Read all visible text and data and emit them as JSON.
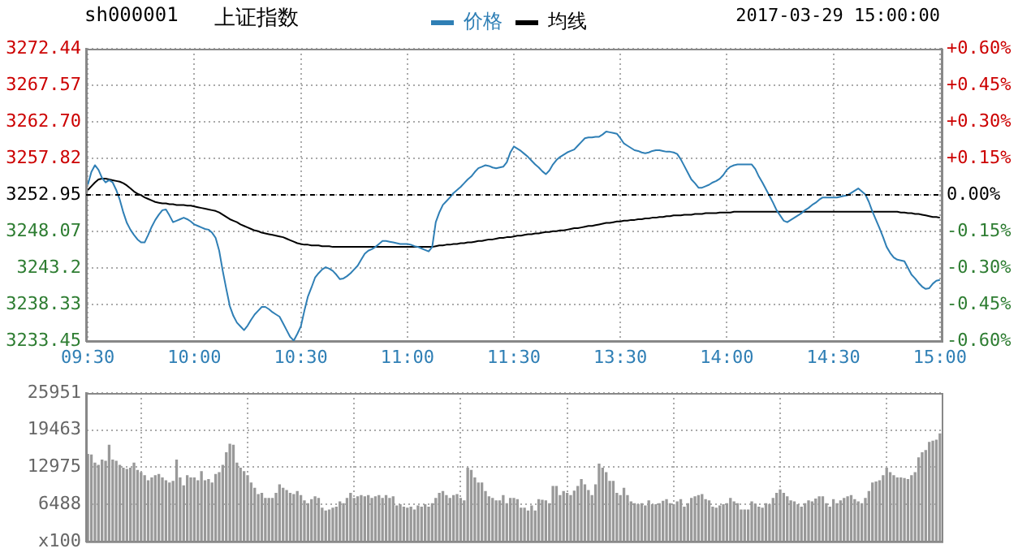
{
  "chart_data": [
    {
      "type": "line",
      "title": "上证指数",
      "subtitle": "sh000001",
      "annotations": [
        "2017-03-29 15:00:00"
      ],
      "legend": "top",
      "grid": true,
      "categories": [
        "09:30",
        null,
        null,
        null,
        null,
        null,
        null,
        null,
        null,
        null,
        null,
        null,
        null,
        null,
        null,
        null,
        null,
        null,
        null,
        null,
        null,
        null,
        null,
        null,
        null,
        null,
        null,
        null,
        null,
        null,
        "10:00",
        null,
        null,
        null,
        null,
        null,
        null,
        null,
        null,
        null,
        null,
        null,
        null,
        null,
        null,
        null,
        null,
        null,
        null,
        null,
        null,
        null,
        null,
        null,
        null,
        null,
        null,
        null,
        null,
        null,
        "10:30",
        null,
        null,
        null,
        null,
        null,
        null,
        null,
        null,
        null,
        null,
        null,
        null,
        null,
        null,
        null,
        null,
        null,
        null,
        null,
        null,
        null,
        null,
        null,
        null,
        null,
        null,
        null,
        null,
        null,
        "11:00",
        null,
        null,
        null,
        null,
        null,
        null,
        null,
        null,
        null,
        null,
        null,
        null,
        null,
        null,
        null,
        null,
        null,
        null,
        null,
        null,
        null,
        null,
        null,
        null,
        null,
        null,
        null,
        null,
        null,
        "11:30",
        null,
        null,
        null,
        null,
        null,
        null,
        null,
        null,
        null,
        null,
        null,
        null,
        null,
        null,
        null,
        null,
        null,
        null,
        null,
        null,
        null,
        null,
        null,
        null,
        null,
        null,
        null,
        null,
        null,
        "13:30",
        null,
        null,
        null,
        null,
        null,
        null,
        null,
        null,
        null,
        null,
        null,
        null,
        null,
        null,
        null,
        null,
        null,
        null,
        null,
        null,
        null,
        null,
        null,
        null,
        null,
        null,
        null,
        null,
        null,
        "14:00",
        null,
        null,
        null,
        null,
        null,
        null,
        null,
        null,
        null,
        null,
        null,
        null,
        null,
        null,
        null,
        null,
        null,
        null,
        null,
        null,
        null,
        null,
        null,
        null,
        null,
        null,
        null,
        null,
        null,
        "14:30",
        null,
        null,
        null,
        null,
        null,
        null,
        null,
        null,
        null,
        null,
        null,
        null,
        null,
        null,
        null,
        null,
        null,
        null,
        null,
        null,
        null,
        null,
        null,
        null,
        null,
        null,
        null,
        null,
        null,
        "15:00"
      ],
      "ylim": [
        3233.45,
        3272.44
      ],
      "yticks": [
        3233.45,
        3238.33,
        3243.2,
        3248.07,
        3252.95,
        3257.82,
        {
          "value": 3262.7,
          "label": "3262.70"
        },
        3267.57,
        3272.44
      ],
      "y2lim": [
        -0.6,
        0.6
      ],
      "y2ticks": [
        {
          "value": -0.6,
          "label": "-0.60%"
        },
        {
          "value": -0.45,
          "label": "-0.45%"
        },
        {
          "value": -0.3,
          "label": "-0.30%"
        },
        {
          "value": -0.15,
          "label": "-0.15%"
        },
        {
          "value": 0,
          "label": "0.00%"
        },
        {
          "value": 0.15,
          "label": "+0.15%"
        },
        {
          "value": 0.3,
          "label": "+0.30%"
        },
        {
          "value": 0.45,
          "label": "+0.45%"
        },
        {
          "value": 0.6,
          "label": "+0.60%"
        }
      ],
      "ref_lines": [
        {
          "axis": "y",
          "value": 3252.95,
          "color": "#000000",
          "line_style": "dashed"
        }
      ],
      "series": [
        {
          "name": "价格",
          "color": "#2f7fb5",
          "values": [
            3254.3,
            3256.0,
            3256.9,
            3256.3,
            3255.2,
            3254.6,
            3254.9,
            3254.6,
            3253.6,
            3252.3,
            3250.6,
            3249.2,
            3248.3,
            3247.6,
            3247.0,
            3246.6,
            3246.6,
            3247.6,
            3248.7,
            3249.6,
            3250.3,
            3250.9,
            3251.0,
            3250.2,
            3249.3,
            3249.5,
            3249.7,
            3249.9,
            3249.7,
            3249.4,
            3249.0,
            3248.8,
            3248.6,
            3248.4,
            3248.3,
            3247.9,
            3247.2,
            3245.5,
            3242.8,
            3240.4,
            3238.1,
            3236.8,
            3235.9,
            3235.4,
            3234.9,
            3235.5,
            3236.3,
            3237.0,
            3237.5,
            3238.0,
            3238.0,
            3237.7,
            3237.3,
            3237.0,
            3236.7,
            3235.8,
            3234.9,
            3234.0,
            3233.5,
            3234.4,
            3235.4,
            3237.5,
            3239.4,
            3240.6,
            3241.9,
            3242.5,
            3243.0,
            3243.3,
            3243.1,
            3242.8,
            3242.3,
            3241.7,
            3241.8,
            3242.1,
            3242.5,
            3243.0,
            3243.5,
            3244.3,
            3245.1,
            3245.5,
            3245.7,
            3246.0,
            3246.4,
            3246.8,
            3246.8,
            3246.7,
            3246.6,
            3246.5,
            3246.4,
            3246.4,
            3246.4,
            3246.3,
            3246.1,
            3246.0,
            3245.8,
            3245.6,
            3245.4,
            3246.0,
            3249.3,
            3250.6,
            3251.6,
            3252.1,
            3252.6,
            3253.2,
            3253.6,
            3254.0,
            3254.5,
            3255.0,
            3255.4,
            3256.0,
            3256.5,
            3256.7,
            3256.9,
            3256.8,
            3256.6,
            3256.5,
            3256.6,
            3256.7,
            3257.3,
            3258.6,
            3259.4,
            3259.1,
            3258.8,
            3258.4,
            3258.0,
            3257.5,
            3257.0,
            3256.6,
            3256.1,
            3255.7,
            3256.2,
            3257.0,
            3257.6,
            3258.0,
            3258.3,
            3258.6,
            3258.8,
            3259.0,
            3259.5,
            3260.0,
            3260.5,
            3260.6,
            3260.6,
            3260.7,
            3260.7,
            3261.0,
            3261.4,
            3261.3,
            3261.2,
            3261.1,
            3260.5,
            3259.8,
            3259.5,
            3259.2,
            3258.9,
            3258.8,
            3258.6,
            3258.5,
            3258.6,
            3258.8,
            3258.9,
            3258.9,
            3258.8,
            3258.7,
            3258.7,
            3258.6,
            3258.4,
            3257.7,
            3256.8,
            3255.9,
            3255.0,
            3254.5,
            3253.9,
            3253.9,
            3254.1,
            3254.3,
            3254.6,
            3254.8,
            3255.1,
            3255.6,
            3256.3,
            3256.7,
            3256.9,
            3257.0,
            3257.0,
            3257.0,
            3257.0,
            3257.0,
            3256.4,
            3255.4,
            3254.6,
            3253.7,
            3252.8,
            3251.9,
            3250.9,
            3250.2,
            3249.5,
            3249.3,
            3249.6,
            3249.9,
            3250.2,
            3250.5,
            3250.9,
            3251.2,
            3251.6,
            3251.9,
            3252.3,
            3252.6,
            3252.6,
            3252.6,
            3252.6,
            3252.6,
            3252.7,
            3252.8,
            3252.9,
            3253.2,
            3253.5,
            3253.8,
            3253.4,
            3253.0,
            3252.0,
            3250.7,
            3249.6,
            3248.5,
            3247.3,
            3246.0,
            3245.2,
            3244.6,
            3244.3,
            3244.2,
            3244.1,
            3243.2,
            3242.3,
            3241.8,
            3241.2,
            3240.7,
            3240.4,
            3240.5,
            3241.1,
            3241.5,
            3241.6
          ]
        },
        {
          "name": "均线",
          "color": "#000000",
          "values": [
            3253.6,
            3254.1,
            3254.6,
            3255.0,
            3255.1,
            3255.1,
            3255.0,
            3254.9,
            3254.8,
            3254.7,
            3254.5,
            3254.2,
            3253.8,
            3253.4,
            3253.1,
            3252.9,
            3252.6,
            3252.4,
            3252.2,
            3252.0,
            3251.9,
            3251.8,
            3251.8,
            3251.7,
            3251.7,
            3251.6,
            3251.6,
            3251.6,
            3251.5,
            3251.5,
            3251.4,
            3251.3,
            3251.2,
            3251.1,
            3251.0,
            3250.9,
            3250.8,
            3250.6,
            3250.3,
            3250.0,
            3249.7,
            3249.5,
            3249.3,
            3249.0,
            3248.8,
            3248.6,
            3248.4,
            3248.2,
            3248.1,
            3247.9,
            3247.8,
            3247.7,
            3247.6,
            3247.5,
            3247.4,
            3247.3,
            3247.1,
            3246.9,
            3246.7,
            3246.5,
            3246.4,
            3246.3,
            3246.3,
            3246.2,
            3246.2,
            3246.2,
            3246.1,
            3246.1,
            3246.1,
            3246.0,
            3246.0,
            3246.0,
            3246.0,
            3246.0,
            3246.0,
            3246.0,
            3246.0,
            3246.0,
            3246.0,
            3246.0,
            3246.0,
            3246.0,
            3246.0,
            3246.0,
            3246.0,
            3246.0,
            3246.0,
            3246.0,
            3246.0,
            3246.0,
            3246.0,
            3246.0,
            3246.0,
            3246.0,
            3246.0,
            3246.0,
            3246.0,
            3246.0,
            3246.1,
            3246.2,
            3246.2,
            3246.3,
            3246.3,
            3246.4,
            3246.4,
            3246.5,
            3246.5,
            3246.6,
            3246.6,
            3246.7,
            3246.8,
            3246.8,
            3246.9,
            3247.0,
            3247.0,
            3247.1,
            3247.2,
            3247.2,
            3247.3,
            3247.3,
            3247.4,
            3247.5,
            3247.5,
            3247.6,
            3247.7,
            3247.7,
            3247.8,
            3247.8,
            3247.9,
            3248.0,
            3248.0,
            3248.1,
            3248.1,
            3248.2,
            3248.2,
            3248.3,
            3248.4,
            3248.5,
            3248.5,
            3248.6,
            3248.7,
            3248.8,
            3248.8,
            3248.9,
            3249.0,
            3249.1,
            3249.2,
            3249.2,
            3249.3,
            3249.4,
            3249.4,
            3249.5,
            3249.5,
            3249.6,
            3249.6,
            3249.7,
            3249.7,
            3249.8,
            3249.8,
            3249.9,
            3249.9,
            3250.0,
            3250.0,
            3250.1,
            3250.1,
            3250.2,
            3250.2,
            3250.2,
            3250.3,
            3250.3,
            3250.3,
            3250.4,
            3250.4,
            3250.4,
            3250.5,
            3250.5,
            3250.5,
            3250.5,
            3250.6,
            3250.6,
            3250.6,
            3250.6,
            3250.7,
            3250.7,
            3250.7,
            3250.7,
            3250.7,
            3250.7,
            3250.7,
            3250.7,
            3250.7,
            3250.7,
            3250.7,
            3250.7,
            3250.7,
            3250.7,
            3250.7,
            3250.7,
            3250.7,
            3250.7,
            3250.7,
            3250.7,
            3250.7,
            3250.7,
            3250.7,
            3250.7,
            3250.7,
            3250.7,
            3250.7,
            3250.7,
            3250.7,
            3250.7,
            3250.7,
            3250.7,
            3250.7,
            3250.7,
            3250.7,
            3250.7,
            3250.7,
            3250.7,
            3250.7,
            3250.7,
            3250.7,
            3250.7,
            3250.7,
            3250.7,
            3250.7,
            3250.7,
            3250.7,
            3250.6,
            3250.6,
            3250.5,
            3250.5,
            3250.4,
            3250.4,
            3250.3,
            3250.2,
            3250.1,
            3250.0,
            3250.0,
            3249.9
          ]
        }
      ]
    },
    {
      "type": "bar",
      "grid": true,
      "tick_labels": "y",
      "categories": [
        null,
        null,
        null,
        null,
        null,
        null,
        null,
        null,
        null,
        null,
        null,
        null,
        null,
        null,
        null,
        null,
        null,
        null,
        null,
        null,
        null,
        null,
        null,
        null,
        null,
        null,
        null,
        null,
        null,
        null,
        null,
        null,
        null,
        null,
        null,
        null,
        null,
        null,
        null,
        null,
        null,
        null,
        null,
        null,
        null,
        null,
        null,
        null,
        null,
        null,
        null,
        null,
        null,
        null,
        null,
        null,
        null,
        null,
        null,
        null,
        null,
        null,
        null,
        null,
        null,
        null,
        null,
        null,
        null,
        null,
        null,
        null,
        null,
        null,
        null,
        null,
        null,
        null,
        null,
        null,
        null,
        null,
        null,
        null,
        null,
        null,
        null,
        null,
        null,
        null,
        null,
        null,
        null,
        null,
        null,
        null,
        null,
        null,
        null,
        null,
        null,
        null,
        null,
        null,
        null,
        null,
        null,
        null,
        null,
        null,
        null,
        null,
        null,
        null,
        null,
        null,
        null,
        null,
        null,
        null,
        null,
        null,
        null,
        null,
        null,
        null,
        null,
        null,
        null,
        null,
        null,
        null,
        null,
        null,
        null,
        null,
        null,
        null,
        null,
        null,
        null,
        null,
        null,
        null,
        null,
        null,
        null,
        null,
        null,
        null,
        null,
        null,
        null,
        null,
        null,
        null,
        null,
        null,
        null,
        null,
        null,
        null,
        null,
        null,
        null,
        null,
        null,
        null,
        null,
        null,
        null,
        null,
        null,
        null,
        null,
        null,
        null,
        null,
        null,
        null,
        null,
        null,
        null,
        null,
        null,
        null,
        null,
        null,
        null,
        null,
        null,
        null,
        null,
        null,
        null,
        null,
        null,
        null,
        null,
        null,
        null,
        null,
        null,
        null,
        null,
        null,
        null,
        null,
        null,
        null,
        null,
        null,
        null,
        null,
        null,
        null,
        null,
        null,
        null,
        null,
        null,
        null,
        null,
        null,
        null,
        null,
        null,
        null,
        null,
        null,
        null,
        null,
        null,
        null,
        null,
        null,
        null,
        null,
        null,
        null,
        null
      ],
      "ylim": [
        0,
        25951
      ],
      "yticks": [
        {
          "value": 0,
          "label": "x100"
        },
        6488,
        12975,
        19463,
        25951
      ],
      "series": [
        {
          "color": "#999999",
          "values": [
            15200,
            15100,
            13700,
            13300,
            14200,
            14000,
            16800,
            14200,
            14000,
            13300,
            12800,
            12600,
            12800,
            13700,
            12400,
            12000,
            11500,
            10600,
            11100,
            11500,
            11700,
            11100,
            10600,
            10200,
            10500,
            14200,
            11100,
            9700,
            11500,
            11100,
            11100,
            10600,
            12200,
            10600,
            10800,
            10200,
            11700,
            12000,
            13300,
            15500,
            17000,
            16800,
            13700,
            12800,
            12200,
            11500,
            10200,
            9300,
            8200,
            8400,
            7500,
            7500,
            7500,
            8400,
            9900,
            9300,
            8900,
            8400,
            8200,
            8700,
            8000,
            7100,
            6600,
            7300,
            7800,
            7500,
            5800,
            5300,
            5500,
            5800,
            6000,
            6900,
            6600,
            7500,
            8400,
            7500,
            7800,
            8000,
            7800,
            8000,
            7500,
            7800,
            8000,
            7500,
            8000,
            7500,
            7800,
            6200,
            6400,
            6000,
            5800,
            6000,
            5500,
            6200,
            6000,
            6400,
            6000,
            6600,
            7500,
            8400,
            8700,
            8000,
            7500,
            8000,
            8200,
            7500,
            7100,
            12800,
            12400,
            11100,
            10200,
            10200,
            8700,
            7800,
            7500,
            7100,
            7100,
            8000,
            6600,
            7500,
            7500,
            7300,
            5800,
            5800,
            5300,
            6200,
            5300,
            7300,
            7200,
            7100,
            6600,
            9600,
            9600,
            8000,
            8700,
            8400,
            8000,
            8800,
            9600,
            10800,
            9900,
            8900,
            8000,
            9900,
            13500,
            12800,
            12000,
            10500,
            10500,
            8400,
            8000,
            9300,
            8000,
            6900,
            6600,
            6400,
            6600,
            6200,
            7100,
            6400,
            6400,
            6600,
            7000,
            7300,
            6600,
            6400,
            6900,
            7300,
            6000,
            6600,
            7500,
            7800,
            8000,
            8200,
            7300,
            7100,
            6000,
            5800,
            6200,
            6400,
            6600,
            7500,
            6900,
            6600,
            5500,
            5500,
            5500,
            6900,
            6500,
            6000,
            5800,
            6600,
            6400,
            7500,
            8400,
            9000,
            8400,
            7800,
            7100,
            6900,
            6400,
            6000,
            6600,
            7100,
            6900,
            7400,
            7800,
            7800,
            6600,
            6000,
            7300,
            6600,
            7100,
            7500,
            7800,
            8000,
            7300,
            6900,
            6600,
            7500,
            8700,
            10200,
            10400,
            10600,
            11500,
            12800,
            12000,
            11500,
            11100,
            11100,
            11000,
            10800,
            11500,
            12000,
            14600,
            15500,
            15900,
            17300,
            17500,
            17700,
            18800
          ]
        }
      ]
    }
  ]
}
